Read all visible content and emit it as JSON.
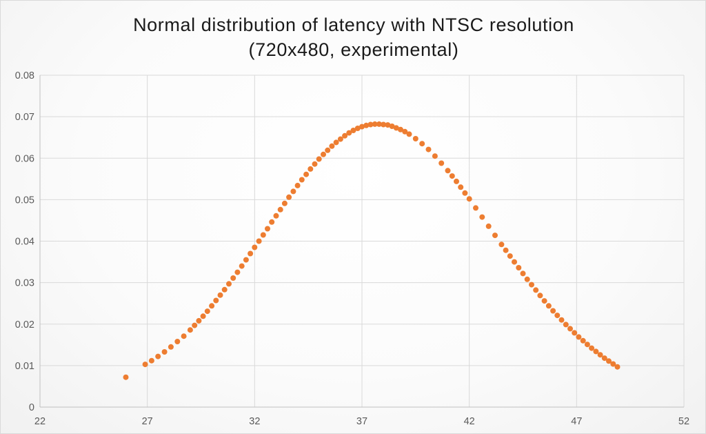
{
  "chart_data": {
    "type": "scatter",
    "title_lines": [
      "Normal distribution of latency with NTSC resolution",
      "(720x480, experimental)"
    ],
    "xlabel": "",
    "ylabel": "",
    "xlim": [
      22,
      52
    ],
    "ylim": [
      0,
      0.08
    ],
    "x_ticks": [
      22,
      27,
      32,
      37,
      42,
      47,
      52
    ],
    "y_ticks": [
      0,
      0.01,
      0.02,
      0.03,
      0.04,
      0.05,
      0.06,
      0.07,
      0.08
    ],
    "x_tick_labels": [
      "22",
      "27",
      "32",
      "37",
      "42",
      "47",
      "52"
    ],
    "y_tick_labels": [
      "0",
      "0.01",
      "0.02",
      "0.03",
      "0.04",
      "0.05",
      "0.06",
      "0.07",
      "0.08"
    ],
    "grid": true,
    "legend": "none",
    "series": [
      {
        "color": "#ED7D31",
        "x": [
          26.0,
          26.9,
          27.2,
          27.5,
          27.8,
          28.1,
          28.4,
          28.7,
          29.0,
          29.2,
          29.4,
          29.6,
          29.8,
          30.0,
          30.2,
          30.4,
          30.6,
          30.8,
          31.0,
          31.2,
          31.4,
          31.6,
          31.8,
          32.0,
          32.2,
          32.4,
          32.6,
          32.8,
          33.0,
          33.2,
          33.4,
          33.6,
          33.8,
          34.0,
          34.2,
          34.4,
          34.6,
          34.8,
          35.0,
          35.2,
          35.4,
          35.6,
          35.8,
          36.0,
          36.2,
          36.4,
          36.6,
          36.8,
          37.0,
          37.2,
          37.4,
          37.6,
          37.8,
          38.0,
          38.2,
          38.4,
          38.6,
          38.8,
          39.0,
          39.2,
          39.5,
          39.8,
          40.1,
          40.4,
          40.7,
          41.0,
          41.2,
          41.4,
          41.6,
          41.8,
          42.0,
          42.3,
          42.6,
          42.9,
          43.2,
          43.5,
          43.7,
          43.9,
          44.1,
          44.3,
          44.5,
          44.7,
          44.9,
          45.1,
          45.3,
          45.5,
          45.7,
          45.9,
          46.1,
          46.3,
          46.5,
          46.7,
          46.9,
          47.1,
          47.3,
          47.5,
          47.7,
          47.9,
          48.1,
          48.3,
          48.5,
          48.7,
          48.9
        ],
        "y": [
          0.0072,
          0.0103,
          0.0112,
          0.0122,
          0.0133,
          0.0145,
          0.0158,
          0.0171,
          0.0186,
          0.0197,
          0.0208,
          0.0219,
          0.0231,
          0.0244,
          0.0257,
          0.027,
          0.0283,
          0.0297,
          0.0311,
          0.0325,
          0.034,
          0.0355,
          0.037,
          0.0385,
          0.04,
          0.0415,
          0.043,
          0.0446,
          0.0461,
          0.0476,
          0.0491,
          0.0506,
          0.052,
          0.0534,
          0.0548,
          0.0561,
          0.0574,
          0.0586,
          0.0598,
          0.0609,
          0.0619,
          0.0629,
          0.0638,
          0.0646,
          0.0654,
          0.0661,
          0.0667,
          0.0672,
          0.0676,
          0.0679,
          0.0681,
          0.0682,
          0.0682,
          0.0681,
          0.068,
          0.0677,
          0.0673,
          0.0669,
          0.0664,
          0.0658,
          0.0647,
          0.0635,
          0.0621,
          0.0605,
          0.0588,
          0.057,
          0.0557,
          0.0544,
          0.053,
          0.0516,
          0.0502,
          0.048,
          0.0458,
          0.0436,
          0.0414,
          0.0392,
          0.0378,
          0.0364,
          0.035,
          0.0336,
          0.0322,
          0.0308,
          0.0295,
          0.0282,
          0.0269,
          0.0256,
          0.0244,
          0.0232,
          0.0221,
          0.021,
          0.0199,
          0.0189,
          0.0179,
          0.0169,
          0.016,
          0.0151,
          0.0142,
          0.0134,
          0.0126,
          0.0118,
          0.0111,
          0.0104,
          0.0097
        ]
      }
    ]
  }
}
